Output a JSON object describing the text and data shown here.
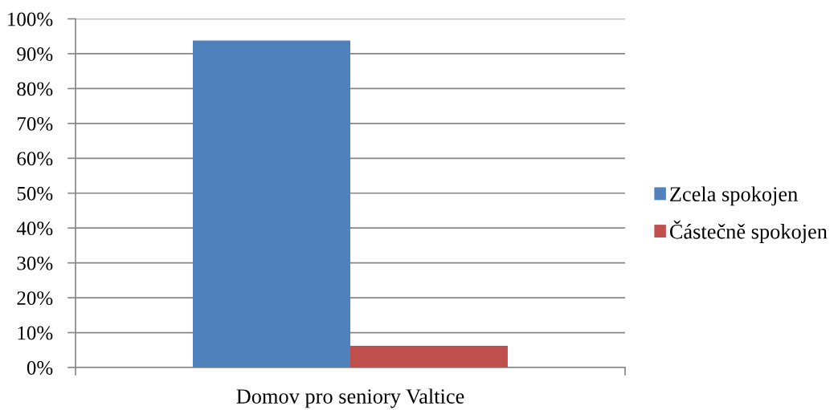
{
  "chart_data": {
    "type": "bar",
    "categories": [
      "Domov pro seniory Valtice"
    ],
    "series": [
      {
        "name": "Zcela spokojen",
        "color": "#4f81bd",
        "values": [
          93.8
        ]
      },
      {
        "name": "Částečně spokojen",
        "color": "#c0504d",
        "values": [
          6.2
        ]
      }
    ],
    "ylim": [
      0,
      100
    ],
    "yticks": [
      {
        "value": 0,
        "label": "0%"
      },
      {
        "value": 10,
        "label": "10%"
      },
      {
        "value": 20,
        "label": "20%"
      },
      {
        "value": 30,
        "label": "30%"
      },
      {
        "value": 40,
        "label": "40%"
      },
      {
        "value": 50,
        "label": "50%"
      },
      {
        "value": 60,
        "label": "60%"
      },
      {
        "value": 70,
        "label": "70%"
      },
      {
        "value": 80,
        "label": "80%"
      },
      {
        "value": 90,
        "label": "90%"
      },
      {
        "value": 100,
        "label": "100%"
      }
    ],
    "grid": "y",
    "legend": "right"
  }
}
